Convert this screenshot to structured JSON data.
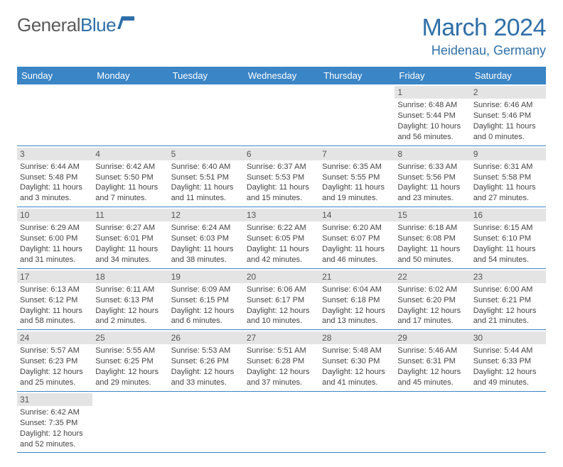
{
  "logo": {
    "word1": "General",
    "word2": "Blue"
  },
  "title": {
    "month": "March 2024",
    "location": "Heidenau, Germany"
  },
  "colors": {
    "header_bg": "#3a85c6",
    "header_text": "#ffffff",
    "accent": "#2f6fa8",
    "daynum_bg": "#e4e4e4",
    "border": "#3a85c6"
  },
  "weekdays": [
    "Sunday",
    "Monday",
    "Tuesday",
    "Wednesday",
    "Thursday",
    "Friday",
    "Saturday"
  ],
  "weeks": [
    [
      null,
      null,
      null,
      null,
      null,
      {
        "n": "1",
        "sr": "Sunrise: 6:48 AM",
        "ss": "Sunset: 5:44 PM",
        "d1": "Daylight: 10 hours",
        "d2": "and 56 minutes."
      },
      {
        "n": "2",
        "sr": "Sunrise: 6:46 AM",
        "ss": "Sunset: 5:46 PM",
        "d1": "Daylight: 11 hours",
        "d2": "and 0 minutes."
      }
    ],
    [
      {
        "n": "3",
        "sr": "Sunrise: 6:44 AM",
        "ss": "Sunset: 5:48 PM",
        "d1": "Daylight: 11 hours",
        "d2": "and 3 minutes."
      },
      {
        "n": "4",
        "sr": "Sunrise: 6:42 AM",
        "ss": "Sunset: 5:50 PM",
        "d1": "Daylight: 11 hours",
        "d2": "and 7 minutes."
      },
      {
        "n": "5",
        "sr": "Sunrise: 6:40 AM",
        "ss": "Sunset: 5:51 PM",
        "d1": "Daylight: 11 hours",
        "d2": "and 11 minutes."
      },
      {
        "n": "6",
        "sr": "Sunrise: 6:37 AM",
        "ss": "Sunset: 5:53 PM",
        "d1": "Daylight: 11 hours",
        "d2": "and 15 minutes."
      },
      {
        "n": "7",
        "sr": "Sunrise: 6:35 AM",
        "ss": "Sunset: 5:55 PM",
        "d1": "Daylight: 11 hours",
        "d2": "and 19 minutes."
      },
      {
        "n": "8",
        "sr": "Sunrise: 6:33 AM",
        "ss": "Sunset: 5:56 PM",
        "d1": "Daylight: 11 hours",
        "d2": "and 23 minutes."
      },
      {
        "n": "9",
        "sr": "Sunrise: 6:31 AM",
        "ss": "Sunset: 5:58 PM",
        "d1": "Daylight: 11 hours",
        "d2": "and 27 minutes."
      }
    ],
    [
      {
        "n": "10",
        "sr": "Sunrise: 6:29 AM",
        "ss": "Sunset: 6:00 PM",
        "d1": "Daylight: 11 hours",
        "d2": "and 31 minutes."
      },
      {
        "n": "11",
        "sr": "Sunrise: 6:27 AM",
        "ss": "Sunset: 6:01 PM",
        "d1": "Daylight: 11 hours",
        "d2": "and 34 minutes."
      },
      {
        "n": "12",
        "sr": "Sunrise: 6:24 AM",
        "ss": "Sunset: 6:03 PM",
        "d1": "Daylight: 11 hours",
        "d2": "and 38 minutes."
      },
      {
        "n": "13",
        "sr": "Sunrise: 6:22 AM",
        "ss": "Sunset: 6:05 PM",
        "d1": "Daylight: 11 hours",
        "d2": "and 42 minutes."
      },
      {
        "n": "14",
        "sr": "Sunrise: 6:20 AM",
        "ss": "Sunset: 6:07 PM",
        "d1": "Daylight: 11 hours",
        "d2": "and 46 minutes."
      },
      {
        "n": "15",
        "sr": "Sunrise: 6:18 AM",
        "ss": "Sunset: 6:08 PM",
        "d1": "Daylight: 11 hours",
        "d2": "and 50 minutes."
      },
      {
        "n": "16",
        "sr": "Sunrise: 6:15 AM",
        "ss": "Sunset: 6:10 PM",
        "d1": "Daylight: 11 hours",
        "d2": "and 54 minutes."
      }
    ],
    [
      {
        "n": "17",
        "sr": "Sunrise: 6:13 AM",
        "ss": "Sunset: 6:12 PM",
        "d1": "Daylight: 11 hours",
        "d2": "and 58 minutes."
      },
      {
        "n": "18",
        "sr": "Sunrise: 6:11 AM",
        "ss": "Sunset: 6:13 PM",
        "d1": "Daylight: 12 hours",
        "d2": "and 2 minutes."
      },
      {
        "n": "19",
        "sr": "Sunrise: 6:09 AM",
        "ss": "Sunset: 6:15 PM",
        "d1": "Daylight: 12 hours",
        "d2": "and 6 minutes."
      },
      {
        "n": "20",
        "sr": "Sunrise: 6:06 AM",
        "ss": "Sunset: 6:17 PM",
        "d1": "Daylight: 12 hours",
        "d2": "and 10 minutes."
      },
      {
        "n": "21",
        "sr": "Sunrise: 6:04 AM",
        "ss": "Sunset: 6:18 PM",
        "d1": "Daylight: 12 hours",
        "d2": "and 13 minutes."
      },
      {
        "n": "22",
        "sr": "Sunrise: 6:02 AM",
        "ss": "Sunset: 6:20 PM",
        "d1": "Daylight: 12 hours",
        "d2": "and 17 minutes."
      },
      {
        "n": "23",
        "sr": "Sunrise: 6:00 AM",
        "ss": "Sunset: 6:21 PM",
        "d1": "Daylight: 12 hours",
        "d2": "and 21 minutes."
      }
    ],
    [
      {
        "n": "24",
        "sr": "Sunrise: 5:57 AM",
        "ss": "Sunset: 6:23 PM",
        "d1": "Daylight: 12 hours",
        "d2": "and 25 minutes."
      },
      {
        "n": "25",
        "sr": "Sunrise: 5:55 AM",
        "ss": "Sunset: 6:25 PM",
        "d1": "Daylight: 12 hours",
        "d2": "and 29 minutes."
      },
      {
        "n": "26",
        "sr": "Sunrise: 5:53 AM",
        "ss": "Sunset: 6:26 PM",
        "d1": "Daylight: 12 hours",
        "d2": "and 33 minutes."
      },
      {
        "n": "27",
        "sr": "Sunrise: 5:51 AM",
        "ss": "Sunset: 6:28 PM",
        "d1": "Daylight: 12 hours",
        "d2": "and 37 minutes."
      },
      {
        "n": "28",
        "sr": "Sunrise: 5:48 AM",
        "ss": "Sunset: 6:30 PM",
        "d1": "Daylight: 12 hours",
        "d2": "and 41 minutes."
      },
      {
        "n": "29",
        "sr": "Sunrise: 5:46 AM",
        "ss": "Sunset: 6:31 PM",
        "d1": "Daylight: 12 hours",
        "d2": "and 45 minutes."
      },
      {
        "n": "30",
        "sr": "Sunrise: 5:44 AM",
        "ss": "Sunset: 6:33 PM",
        "d1": "Daylight: 12 hours",
        "d2": "and 49 minutes."
      }
    ],
    [
      {
        "n": "31",
        "sr": "Sunrise: 6:42 AM",
        "ss": "Sunset: 7:35 PM",
        "d1": "Daylight: 12 hours",
        "d2": "and 52 minutes."
      },
      null,
      null,
      null,
      null,
      null,
      null
    ]
  ]
}
